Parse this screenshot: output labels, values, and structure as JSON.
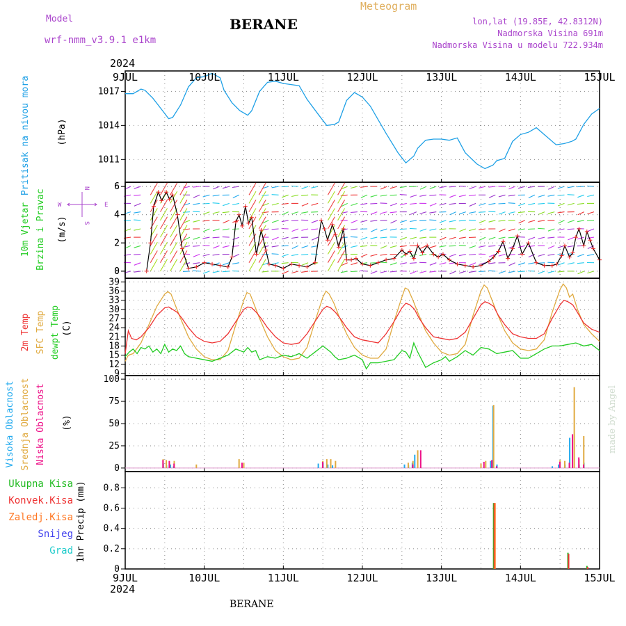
{
  "header": {
    "model_label": "Model",
    "model_name": "wrf-nmm_v3.9.1  e1km",
    "station": "BERANE",
    "meteogram": "Meteogram",
    "coords": "lon,lat (19.85E, 42.8312N)",
    "elevation": "Nadmorska Visina 691m",
    "model_elevation": "Nadmorska Visina u modelu 722.934m",
    "year_top": "2024",
    "year_bottom": "2024",
    "station_bottom": "BERANE",
    "credit": "made by Angel"
  },
  "colors": {
    "pressure": "#1ea0e6",
    "temp2m": "#ee3333",
    "sfc": "#e0aa40",
    "dewpt": "#22cc22",
    "high": "#22aaee",
    "mid": "#e0aa40",
    "low": "#ee1188",
    "purple": "#aa44cc",
    "total": "#22bb22",
    "conv": "#ee3333",
    "frozen": "#ff7722",
    "snow": "#4444ee",
    "grad": "#22cccc"
  },
  "chart_data": [
    {
      "type": "line",
      "panel": "pressure",
      "ylabels": [
        "Pritisak na nivou mora",
        "(hPa)"
      ],
      "ylim": [
        1009,
        1018.8
      ],
      "yticks": [
        "1011",
        "1014",
        "1017"
      ],
      "x_ticks": [
        "9JUL",
        "10JUL",
        "11JUL",
        "12JUL",
        "13JUL",
        "14JUL",
        "15JUL"
      ],
      "series": [
        {
          "values_x": [
            0,
            0.1,
            0.2,
            0.25,
            0.35,
            0.45,
            0.55,
            0.6,
            0.7,
            0.8,
            0.9,
            1.0,
            1.1,
            1.2,
            1.25,
            1.35,
            1.45,
            1.55,
            1.6,
            1.7,
            1.8,
            1.9,
            2.0,
            2.1,
            2.2,
            2.3,
            2.45,
            2.55,
            2.65,
            2.7,
            2.8,
            2.9,
            3.0,
            3.1,
            3.2,
            3.3,
            3.45,
            3.55,
            3.65,
            3.7,
            3.8,
            3.9,
            4.0,
            4.1,
            4.2,
            4.3,
            4.45,
            4.55,
            4.65,
            4.7,
            4.8,
            4.9,
            5.0,
            5.1,
            5.2,
            5.3,
            5.45,
            5.55,
            5.65,
            5.7,
            5.8,
            5.9,
            6.0
          ],
          "values_y": [
            1016.8,
            1016.8,
            1017.2,
            1017.1,
            1016.4,
            1015.5,
            1014.6,
            1014.7,
            1015.8,
            1017.4,
            1018.2,
            1018.3,
            1018.6,
            1018.2,
            1017.1,
            1016.0,
            1015.3,
            1014.9,
            1015.3,
            1017.0,
            1017.8,
            1017.9,
            1017.7,
            1017.6,
            1017.5,
            1016.3,
            1014.9,
            1014.0,
            1014.1,
            1014.3,
            1016.2,
            1016.9,
            1016.5,
            1015.7,
            1014.5,
            1013.3,
            1011.6,
            1010.7,
            1011.3,
            1012.0,
            1012.7,
            1012.8,
            1012.8,
            1012.7,
            1012.9,
            1011.6,
            1010.6,
            1010.2,
            1010.5,
            1010.9,
            1011.1,
            1012.6,
            1013.2,
            1013.4,
            1013.8,
            1013.2,
            1012.3,
            1012.4,
            1012.6,
            1012.8,
            1014.1,
            1015.0,
            1015.5
          ]
        }
      ]
    },
    {
      "type": "line",
      "panel": "wind",
      "ylabels": [
        "10m Vjetar",
        "Brzina i Pravac",
        "(m/s)"
      ],
      "compass": {
        "n": "N",
        "s": "S",
        "e": "E",
        "w": "W"
      },
      "ylim": [
        -0.5,
        6.3
      ],
      "yticks": [
        "0",
        "2",
        "4",
        "6"
      ],
      "series": [
        {
          "name": "wind speed",
          "values_x": [
            0.27,
            0.32,
            0.36,
            0.42,
            0.46,
            0.52,
            0.56,
            0.6,
            0.66,
            0.72,
            0.8,
            0.9,
            1.0,
            1.1,
            1.2,
            1.3,
            1.35,
            1.4,
            1.44,
            1.48,
            1.52,
            1.56,
            1.6,
            1.66,
            1.72,
            1.78,
            1.82,
            1.9,
            2.0,
            2.1,
            2.2,
            2.3,
            2.4,
            2.48,
            2.52,
            2.56,
            2.62,
            2.66,
            2.7,
            2.76,
            2.8,
            2.86,
            2.92,
            3.0,
            3.1,
            3.2,
            3.3,
            3.4,
            3.5,
            3.55,
            3.6,
            3.65,
            3.7,
            3.76,
            3.82,
            3.9,
            3.96,
            4.02,
            4.1,
            4.2,
            4.3,
            4.4,
            4.5,
            4.6,
            4.66,
            4.72,
            4.78,
            4.84,
            4.9,
            4.96,
            5.02,
            5.1,
            5.2,
            5.3,
            5.4,
            5.46,
            5.52,
            5.56,
            5.62,
            5.66,
            5.7,
            5.74,
            5.8,
            5.84,
            5.88,
            5.92,
            6.0
          ],
          "values_y": [
            0.0,
            2.0,
            4.6,
            5.6,
            5.0,
            5.6,
            5.1,
            5.4,
            4.0,
            1.6,
            0.2,
            0.3,
            0.6,
            0.5,
            0.4,
            0.3,
            1.0,
            3.5,
            4.0,
            3.2,
            4.6,
            3.4,
            3.8,
            1.2,
            2.9,
            1.5,
            0.5,
            0.4,
            0.2,
            0.5,
            0.4,
            0.3,
            0.6,
            3.6,
            3.0,
            2.2,
            3.3,
            2.6,
            1.7,
            3.0,
            0.8,
            0.8,
            0.9,
            0.5,
            0.4,
            0.6,
            0.8,
            0.9,
            1.5,
            1.2,
            1.4,
            0.9,
            1.8,
            1.3,
            1.8,
            1.2,
            1.0,
            1.2,
            0.8,
            0.5,
            0.4,
            0.3,
            0.4,
            0.7,
            1.0,
            1.4,
            2.1,
            0.9,
            1.6,
            2.5,
            1.2,
            2.0,
            0.6,
            0.4,
            0.4,
            0.5,
            1.1,
            1.8,
            1.0,
            1.3,
            2.4,
            3.0,
            1.8,
            2.8,
            2.2,
            1.6,
            0.8
          ]
        }
      ]
    },
    {
      "type": "line",
      "panel": "temperature",
      "ylabels": [
        "2m Temp",
        "SFC Temp",
        "dewpt Temp",
        "(C)"
      ],
      "ylim": [
        8.3,
        40.2
      ],
      "yticks": [
        "9",
        "12",
        "15",
        "18",
        "21",
        "24",
        "27",
        "30",
        "33",
        "36",
        "39"
      ],
      "series": [
        {
          "name": "2m Temp",
          "values_x": [
            0,
            0.04,
            0.08,
            0.14,
            0.2,
            0.3,
            0.4,
            0.5,
            0.55,
            0.6,
            0.66,
            0.72,
            0.8,
            0.9,
            1.0,
            1.1,
            1.2,
            1.3,
            1.4,
            1.5,
            1.55,
            1.6,
            1.66,
            1.72,
            1.8,
            1.9,
            2.0,
            2.1,
            2.2,
            2.3,
            2.4,
            2.5,
            2.55,
            2.6,
            2.66,
            2.72,
            2.8,
            2.9,
            3.0,
            3.1,
            3.2,
            3.3,
            3.4,
            3.5,
            3.55,
            3.6,
            3.66,
            3.72,
            3.8,
            3.9,
            4.0,
            4.1,
            4.2,
            4.3,
            4.4,
            4.5,
            4.55,
            4.6,
            4.66,
            4.72,
            4.8,
            4.9,
            5.0,
            5.1,
            5.2,
            5.3,
            5.4,
            5.5,
            5.55,
            5.6,
            5.66,
            5.72,
            5.8,
            5.9,
            6.0
          ],
          "values_y": [
            15.5,
            23.0,
            20.5,
            20.0,
            21.0,
            24.0,
            28.0,
            30.5,
            30.8,
            30.0,
            29.0,
            27.0,
            24.0,
            21.0,
            19.5,
            19.0,
            19.5,
            22.0,
            26.0,
            30.0,
            30.8,
            30.5,
            29.0,
            27.0,
            24.0,
            21.0,
            19.0,
            18.5,
            19.0,
            22.0,
            26.0,
            30.0,
            31.0,
            30.5,
            29.0,
            27.0,
            24.0,
            21.0,
            20.0,
            19.5,
            19.0,
            22.0,
            26.0,
            30.5,
            32.0,
            31.5,
            30.0,
            27.0,
            24.0,
            21.0,
            20.5,
            20.0,
            20.5,
            22.5,
            27.0,
            31.5,
            32.5,
            32.0,
            31.0,
            28.0,
            25.0,
            22.0,
            21.0,
            20.5,
            20.5,
            22.0,
            27.0,
            31.5,
            33.0,
            32.5,
            31.5,
            29.0,
            25.5,
            23.5,
            22.5
          ]
        },
        {
          "name": "SFC Temp",
          "values_x": [
            0,
            0.04,
            0.1,
            0.2,
            0.3,
            0.4,
            0.5,
            0.54,
            0.58,
            0.64,
            0.7,
            0.8,
            0.9,
            1.0,
            1.1,
            1.2,
            1.3,
            1.4,
            1.5,
            1.54,
            1.58,
            1.64,
            1.7,
            1.8,
            1.9,
            2.0,
            2.1,
            2.2,
            2.3,
            2.4,
            2.5,
            2.54,
            2.58,
            2.64,
            2.7,
            2.8,
            2.9,
            3.0,
            3.1,
            3.2,
            3.3,
            3.4,
            3.5,
            3.54,
            3.58,
            3.64,
            3.7,
            3.8,
            3.9,
            4.0,
            4.1,
            4.2,
            4.3,
            4.4,
            4.5,
            4.54,
            4.58,
            4.64,
            4.7,
            4.8,
            4.9,
            5.0,
            5.1,
            5.2,
            5.3,
            5.4,
            5.5,
            5.54,
            5.58,
            5.62,
            5.66,
            5.72,
            5.8,
            5.9,
            6.0
          ],
          "values_y": [
            13.0,
            15.0,
            15.5,
            19.0,
            25.0,
            31.0,
            35.0,
            35.8,
            35.0,
            31.0,
            27.0,
            21.0,
            17.0,
            14.5,
            13.5,
            13.5,
            16.5,
            25.0,
            33.0,
            35.5,
            35.0,
            31.0,
            27.0,
            21.0,
            16.5,
            14.5,
            13.5,
            14.0,
            17.5,
            26.0,
            34.0,
            36.0,
            35.0,
            32.0,
            28.0,
            22.0,
            17.5,
            15.0,
            14.0,
            14.0,
            17.0,
            26.0,
            34.0,
            37.0,
            36.5,
            33.0,
            29.0,
            23.0,
            19.0,
            16.0,
            15.0,
            15.5,
            18.5,
            28.0,
            36.0,
            38.0,
            37.0,
            33.0,
            29.0,
            23.0,
            19.0,
            17.0,
            16.5,
            17.0,
            20.0,
            29.0,
            36.5,
            38.3,
            37.0,
            34.0,
            35.0,
            30.0,
            25.0,
            22.0,
            19.5
          ]
        },
        {
          "name": "dewpt Temp",
          "values_x": [
            0,
            0.05,
            0.1,
            0.15,
            0.2,
            0.25,
            0.3,
            0.35,
            0.4,
            0.45,
            0.5,
            0.55,
            0.6,
            0.65,
            0.7,
            0.75,
            0.8,
            0.9,
            1.0,
            1.1,
            1.2,
            1.3,
            1.4,
            1.5,
            1.55,
            1.6,
            1.65,
            1.7,
            1.8,
            1.9,
            2.0,
            2.1,
            2.2,
            2.3,
            2.4,
            2.5,
            2.55,
            2.6,
            2.65,
            2.7,
            2.8,
            2.9,
            3.0,
            3.05,
            3.1,
            3.2,
            3.3,
            3.4,
            3.5,
            3.55,
            3.6,
            3.65,
            3.7,
            3.8,
            3.9,
            4.0,
            4.05,
            4.1,
            4.2,
            4.3,
            4.4,
            4.5,
            4.6,
            4.7,
            4.8,
            4.9,
            5.0,
            5.1,
            5.2,
            5.3,
            5.4,
            5.5,
            5.6,
            5.7,
            5.8,
            5.9,
            6.0
          ],
          "values_y": [
            14.5,
            16.0,
            17.0,
            15.5,
            17.5,
            17.0,
            18.0,
            16.0,
            17.0,
            15.5,
            18.5,
            16.0,
            17.0,
            16.5,
            18.0,
            15.5,
            14.5,
            14.0,
            13.5,
            13.0,
            14.0,
            15.0,
            17.0,
            16.0,
            17.5,
            16.0,
            16.5,
            13.5,
            14.5,
            14.0,
            15.0,
            14.5,
            15.5,
            14.0,
            16.0,
            18.0,
            17.0,
            16.0,
            14.5,
            13.5,
            14.0,
            15.0,
            13.5,
            10.5,
            12.5,
            12.5,
            13.0,
            13.5,
            16.5,
            16.0,
            14.0,
            19.0,
            16.0,
            11.0,
            12.5,
            13.5,
            14.5,
            13.0,
            14.5,
            16.5,
            15.0,
            17.5,
            17.0,
            15.5,
            16.0,
            16.5,
            14.0,
            14.0,
            15.5,
            17.0,
            18.0,
            18.0,
            18.5,
            19.0,
            18.0,
            18.5,
            16.5
          ]
        }
      ]
    },
    {
      "type": "bar",
      "panel": "cloud",
      "ylabels": [
        "Visoka Oblacnost",
        "Srednja Oblacnost",
        "Niska Oblacnost",
        "(%)"
      ],
      "ylim": [
        -4,
        104
      ],
      "yticks": [
        "0",
        "25",
        "50",
        "75",
        "100"
      ],
      "series": [
        {
          "name": "Visoka Oblacnost",
          "x": [
            0.5,
            0.54,
            0.59,
            0.63,
            2.46,
            2.52,
            2.58,
            2.64,
            3.55,
            3.6,
            3.65,
            3.68,
            4.64,
            4.67,
            4.72,
            5.42,
            5.5,
            5.58,
            5.64,
            5.76,
            5.82
          ],
          "values": [
            5,
            3,
            4,
            2,
            5,
            6,
            4,
            3,
            4,
            3,
            6,
            15,
            8,
            70,
            4,
            2,
            4,
            4,
            34,
            4,
            6
          ]
        },
        {
          "name": "Srednja Oblacnost",
          "x": [
            0.48,
            0.52,
            0.56,
            0.62,
            0.9,
            1.44,
            1.5,
            2.5,
            2.55,
            2.6,
            2.66,
            3.58,
            3.64,
            3.7,
            4.5,
            4.56,
            4.66,
            5.5,
            5.56,
            5.62,
            5.68,
            5.74,
            5.8
          ],
          "values": [
            10,
            9,
            6,
            8,
            4,
            10,
            6,
            8,
            10,
            10,
            8,
            6,
            8,
            20,
            5,
            8,
            71,
            9,
            8,
            5,
            91,
            10,
            36
          ]
        },
        {
          "name": "Niska Oblacnost",
          "x": [
            0.46,
            0.54,
            0.6,
            1.46,
            2.48,
            3.62,
            3.72,
            4.52,
            4.62,
            4.68,
            5.48,
            5.6,
            5.64,
            5.72,
            5.78
          ],
          "values": [
            9,
            8,
            5,
            6,
            7,
            4,
            20,
            7,
            9,
            2,
            7,
            6,
            38,
            12,
            4
          ]
        }
      ]
    },
    {
      "type": "bar",
      "panel": "precip",
      "ylabels": [
        "1hr Precip (mm)"
      ],
      "legend": [
        "Ukupna Kisa",
        "Konvek.Kisa",
        "Zaledj.Kisa",
        "Snijeg",
        "Grad"
      ],
      "ylim": [
        0,
        0.96
      ],
      "yticks": [
        "0",
        "0.2",
        "0.4",
        "0.6",
        "0.8"
      ],
      "x_ticks": [
        "9JUL",
        "10JUL",
        "11JUL",
        "12JUL",
        "13JUL",
        "14JUL",
        "15JUL"
      ],
      "series": [
        {
          "name": "Ukupna Kisa",
          "x": [
            4.66,
            5.6,
            5.84
          ],
          "values": [
            0.65,
            0.16,
            0.03
          ]
        },
        {
          "name": "Konvek.Kisa",
          "x": [
            4.66,
            5.6,
            5.84
          ],
          "values": [
            0.65,
            0.15,
            0.02
          ]
        },
        {
          "name": "Zaledj.Kisa",
          "x": [
            4.66
          ],
          "values": [
            0.65
          ]
        }
      ]
    }
  ]
}
